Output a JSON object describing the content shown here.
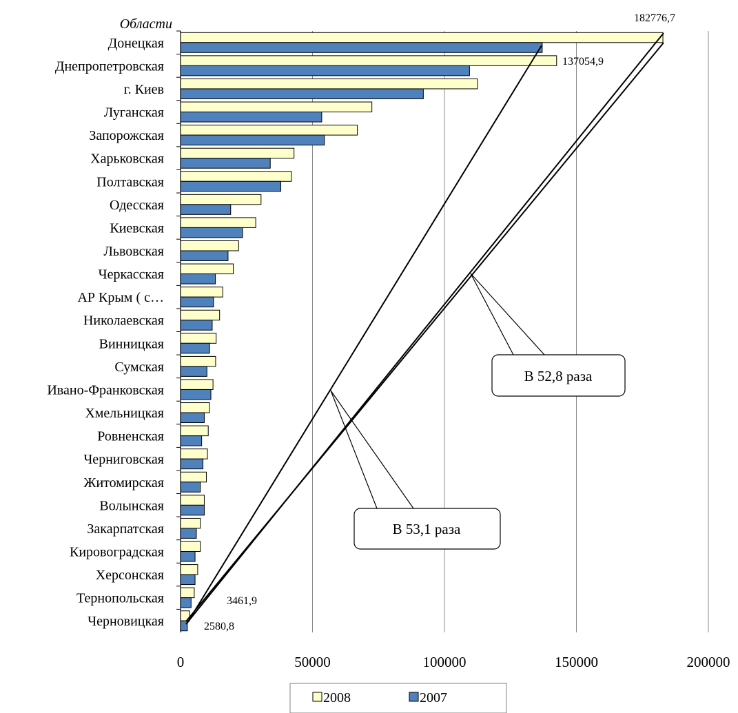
{
  "chart_data": {
    "type": "bar",
    "orientation": "horizontal",
    "ylabel": "Области",
    "categories": [
      "Донецкая",
      "Днепропетровская",
      "г. Киев",
      "Луганская",
      "Запорожская",
      "Харьковская",
      "Полтавская",
      "Одесская",
      "Киевская",
      "Львовская",
      "Черкасская",
      "АР Крым ( с…",
      "Николаевская",
      "Винницкая",
      "Сумская",
      "Ивано-Франковская",
      "Хмельницкая",
      "Ровненская",
      "Черниговская",
      "Житомирская",
      "Волынская",
      "Закарпатская",
      "Кировоградская",
      "Херсонская",
      "Тернопольская",
      "Черновицкая"
    ],
    "series": [
      {
        "name": "2008",
        "color": "#ffffcc",
        "values": [
          182776.7,
          142500,
          112500,
          72500,
          67000,
          43000,
          42000,
          30500,
          28500,
          22000,
          20000,
          16000,
          14800,
          13500,
          13300,
          12300,
          11000,
          10500,
          10200,
          9800,
          9000,
          7500,
          7500,
          6500,
          5200,
          3461.9
        ]
      },
      {
        "name": "2007",
        "color": "#4f81bd",
        "values": [
          137054.9,
          109500,
          92000,
          53500,
          54500,
          34000,
          38000,
          19000,
          23500,
          18000,
          13200,
          12500,
          12000,
          11000,
          10000,
          11500,
          9000,
          8000,
          8500,
          7500,
          9000,
          6000,
          5500,
          5500,
          4000,
          2580.8
        ]
      }
    ],
    "xlim": [
      0,
      200000
    ],
    "xticks": [
      "0",
      "50000",
      "100000",
      "150000",
      "200000"
    ],
    "grid": true,
    "legend_position": "bottom",
    "legend": [
      "2008",
      "2007"
    ],
    "data_labels": {
      "donetsk_2008": "182776,7",
      "donetsk_2007": "137054,9",
      "chernivtsi_2008": "3461,9",
      "chernivtsi_2007": "2580,8"
    },
    "annotations": [
      {
        "text": "В 52,8 раза"
      },
      {
        "text": "В 53,1 раза"
      }
    ]
  }
}
